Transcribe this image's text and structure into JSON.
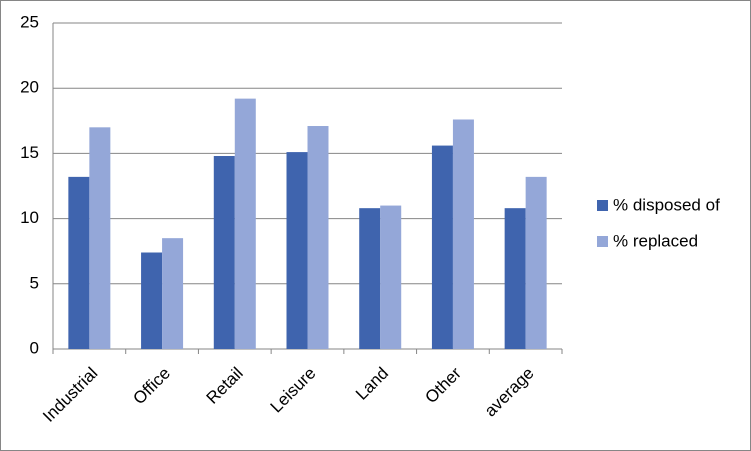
{
  "chart_data": {
    "type": "bar",
    "categories": [
      "Industrial",
      "Office",
      "Retail",
      "Leisure",
      "Land",
      "Other",
      "average"
    ],
    "series": [
      {
        "name": "% disposed of",
        "color": "#3f64ae",
        "values": [
          13.2,
          7.4,
          14.8,
          15.1,
          10.8,
          15.6,
          10.8
        ]
      },
      {
        "name": "% replaced",
        "color": "#94a7d8",
        "values": [
          17.0,
          8.5,
          19.2,
          17.1,
          11.0,
          17.6,
          13.2
        ]
      }
    ],
    "ylim": [
      0,
      25
    ],
    "yticks": [
      0,
      5,
      10,
      15,
      20,
      25
    ],
    "grid": true,
    "legend": "right"
  }
}
